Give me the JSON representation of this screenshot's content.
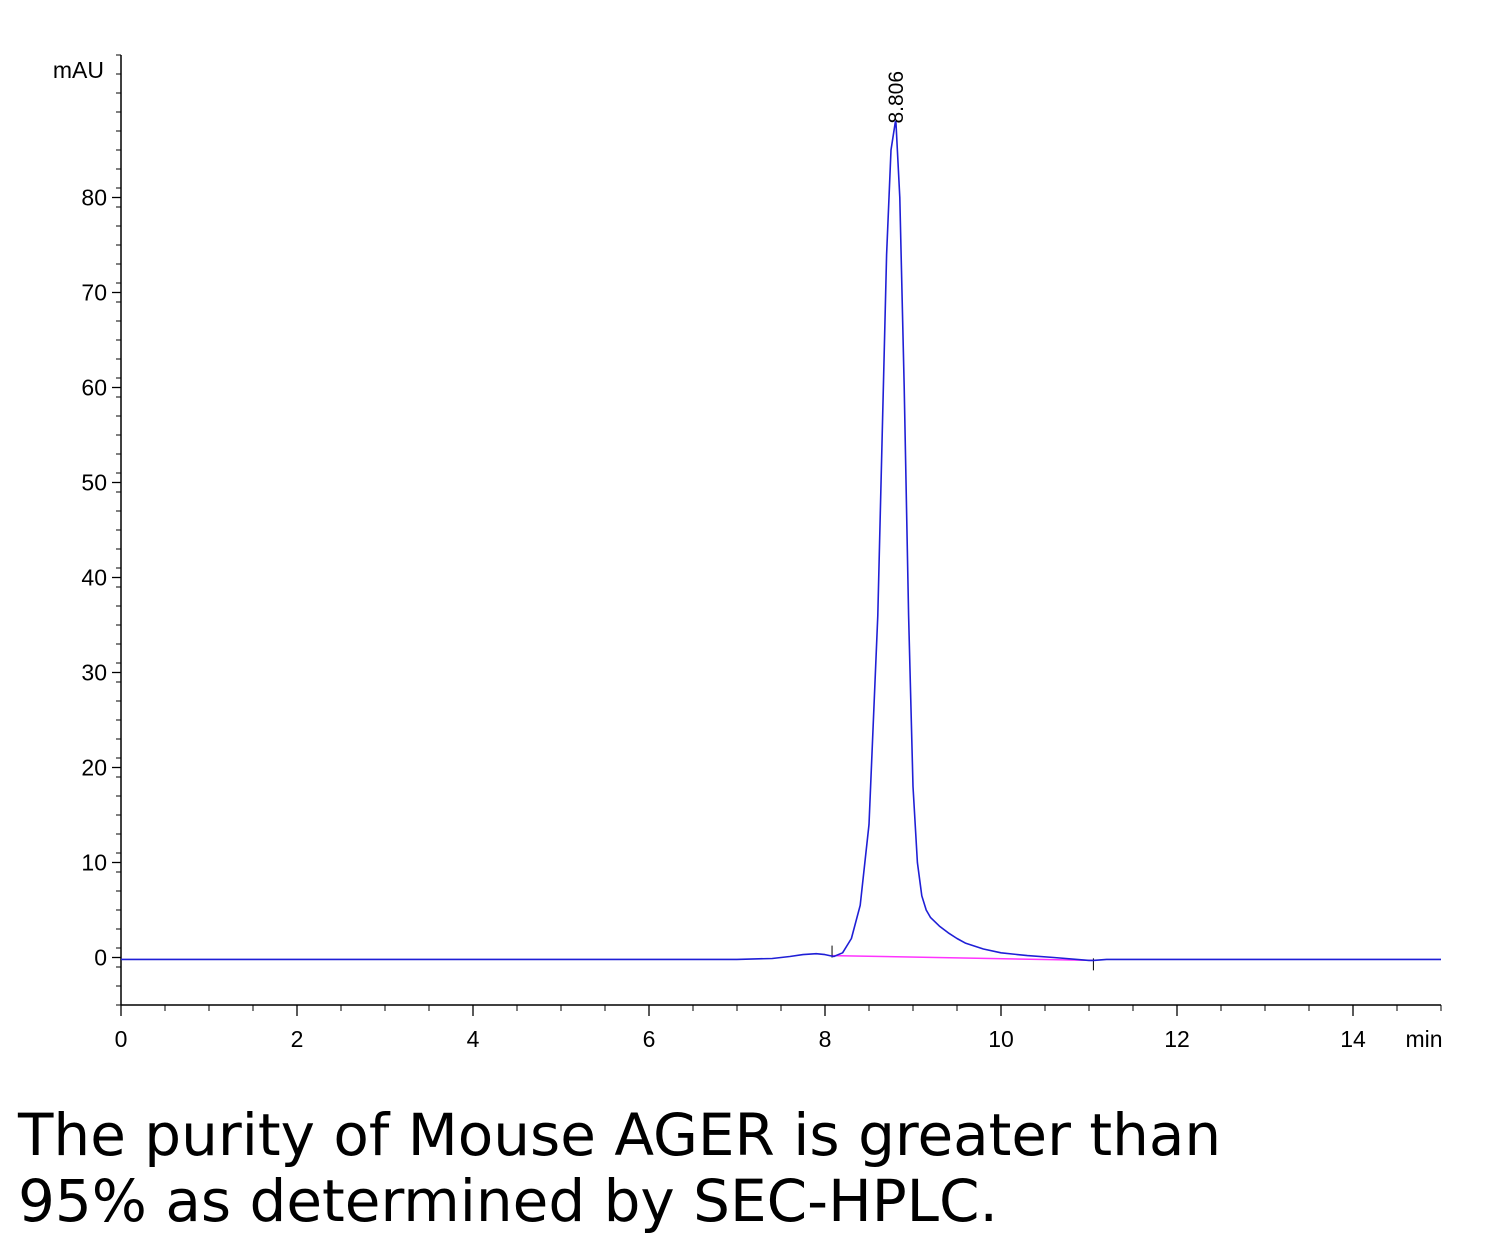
{
  "chart_data": {
    "type": "line",
    "title": "",
    "xlabel": "min",
    "ylabel": "mAU",
    "xlim": [
      0,
      15
    ],
    "ylim": [
      -5,
      95
    ],
    "x_ticks": [
      0,
      2,
      4,
      6,
      8,
      10,
      12,
      14
    ],
    "y_ticks": [
      0,
      10,
      20,
      30,
      40,
      50,
      60,
      70,
      80
    ],
    "grid": false,
    "peak": {
      "retention_time": 8.806,
      "label": "8.806",
      "height": 88
    },
    "integration_baseline": {
      "x": [
        8.08,
        11.05
      ],
      "y": [
        0.2,
        -0.3
      ]
    },
    "series": [
      {
        "color": "#1f1fd6",
        "x": [
          0,
          1,
          2,
          3,
          4,
          5,
          6,
          7,
          7.4,
          7.6,
          7.75,
          7.9,
          8.0,
          8.1,
          8.2,
          8.3,
          8.4,
          8.5,
          8.6,
          8.65,
          8.7,
          8.75,
          8.8,
          8.806,
          8.85,
          8.9,
          8.95,
          9.0,
          9.05,
          9.1,
          9.15,
          9.2,
          9.3,
          9.4,
          9.5,
          9.6,
          9.8,
          10.0,
          10.3,
          10.6,
          11.0,
          11.05,
          11.2,
          12,
          13,
          14,
          14.8,
          15
        ],
        "y": [
          -0.2,
          -0.2,
          -0.2,
          -0.2,
          -0.2,
          -0.2,
          -0.2,
          -0.2,
          -0.1,
          0.1,
          0.3,
          0.4,
          0.3,
          0.1,
          0.5,
          2.0,
          5.5,
          14,
          36,
          55,
          74,
          85,
          88,
          88,
          80,
          60,
          36,
          18,
          10,
          6.5,
          5.0,
          4.2,
          3.3,
          2.6,
          2.0,
          1.5,
          0.9,
          0.5,
          0.2,
          0.0,
          -0.3,
          -0.3,
          -0.2,
          -0.2,
          -0.2,
          -0.2,
          -0.2,
          -0.2
        ]
      }
    ]
  },
  "caption": {
    "line1": "The purity of Mouse AGER is greater than",
    "line2": "95% as determined by SEC-HPLC."
  }
}
